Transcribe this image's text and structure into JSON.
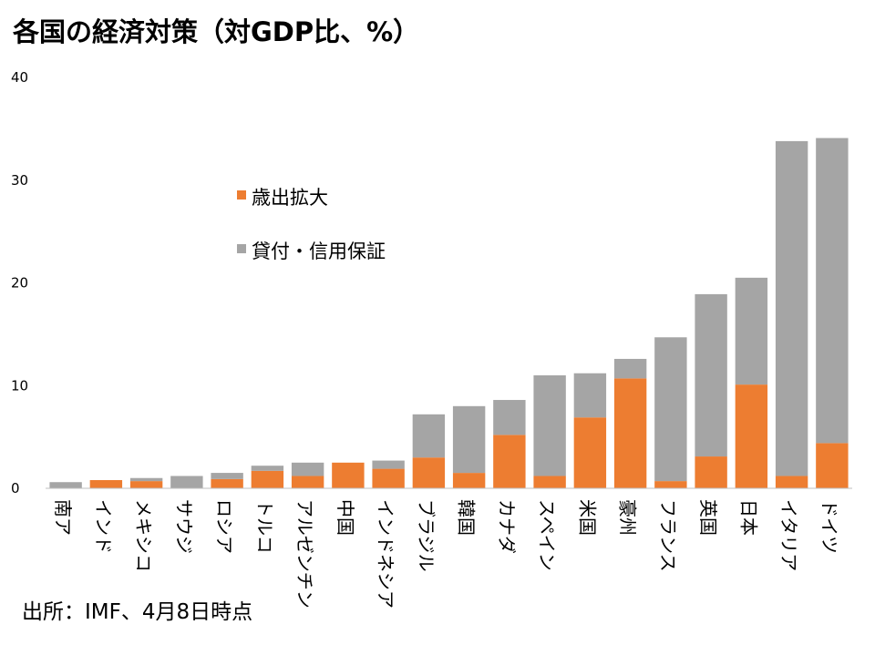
{
  "title": "各国の経済対策（対GDP比、%）",
  "source": "出所：IMF、4月8日時点",
  "colors": {
    "spending": "#ED7D31",
    "loans": "#A5A5A5"
  },
  "chart_data": {
    "type": "bar",
    "stacked": true,
    "title": "各国の経済対策（対GDP比、%）",
    "xlabel": "",
    "ylabel": "",
    "ylim": [
      0,
      40
    ],
    "yticks": [
      "0",
      "10",
      "20",
      "30",
      "40"
    ],
    "grid": false,
    "legend_position": "upper-center",
    "categories": [
      "南ア",
      "インド",
      "メキシコ",
      "サウジ",
      "ロシア",
      "トルコ",
      "アルゼンチン",
      "中国",
      "インドネシア",
      "ブラジル",
      "韓国",
      "カナダ",
      "スペイン",
      "米国",
      "豪州",
      "フランス",
      "英国",
      "日本",
      "イタリア",
      "ドイツ"
    ],
    "series": [
      {
        "name": "歳出拡大",
        "color": "#ED7D31",
        "values": [
          0,
          0.8,
          0.7,
          0,
          0.9,
          1.7,
          1.2,
          2.5,
          1.9,
          3.0,
          1.5,
          5.2,
          1.2,
          6.9,
          10.7,
          0.7,
          3.1,
          10.1,
          1.2,
          4.4
        ]
      },
      {
        "name": "貸付・信用保証",
        "color": "#A5A5A5",
        "values": [
          0.6,
          0,
          0.3,
          1.2,
          0.6,
          0.5,
          1.3,
          0,
          0.8,
          4.2,
          6.5,
          3.4,
          9.8,
          4.3,
          1.9,
          14.0,
          15.8,
          10.4,
          32.6,
          29.7
        ]
      }
    ]
  }
}
